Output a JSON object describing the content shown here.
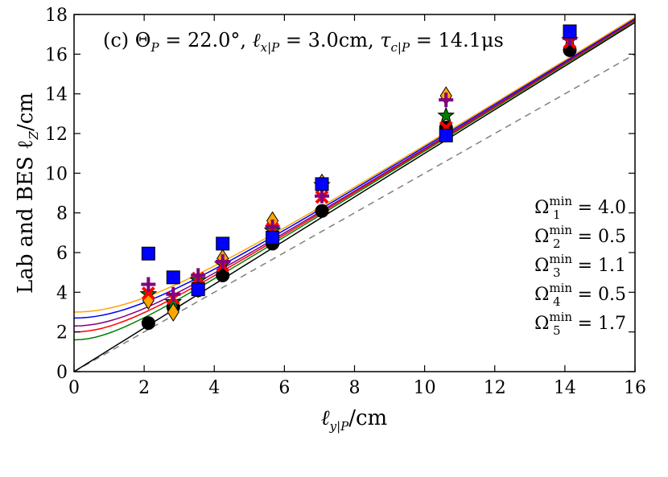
{
  "chart_data": {
    "type": "scatter",
    "title": "",
    "annotation": "(c) Θ_P = 22.0°, ℓ_x|P = 3.0cm, τ_c|P = 14.1μs",
    "annotation_parts": {
      "prefix": "(c) ",
      "theta": "Θ",
      "theta_sub": "P",
      "theta_val": " = 22.0°, ",
      "lx": "ℓ",
      "lx_sub": "x|P",
      "lx_val": " = 3.0cm, ",
      "tau": "τ",
      "tau_sub": "c|P",
      "tau_val": " = 14.1μs"
    },
    "xlabel": "ℓ_y|P/cm",
    "xlabel_parts": {
      "main": "ℓ",
      "sub": "y|P",
      "rest": "/cm"
    },
    "ylabel": "Lab and BES ℓ_Z/cm",
    "ylabel_parts": {
      "main": "Lab and BES ℓ",
      "sub": "Z",
      "rest": "/cm"
    },
    "xlim": [
      0,
      16
    ],
    "ylim": [
      0,
      18
    ],
    "xticks": [
      "0",
      "2",
      "4",
      "6",
      "8",
      "10",
      "12",
      "14",
      "16"
    ],
    "yticks": [
      "0",
      "2",
      "4",
      "6",
      "8",
      "10",
      "12",
      "14",
      "16",
      "18"
    ],
    "grid": false,
    "legend_placement": "right",
    "omega_labels": [
      {
        "sym": "Ω",
        "sub": "1",
        "sup": "min",
        "val": " = 4.0"
      },
      {
        "sym": "Ω",
        "sub": "2",
        "sup": "min",
        "val": " = 0.5"
      },
      {
        "sym": "Ω",
        "sub": "3",
        "sup": "min",
        "val": " = 1.1"
      },
      {
        "sym": "Ω",
        "sub": "4",
        "sup": "min",
        "val": " = 0.5"
      },
      {
        "sym": "Ω",
        "sub": "5",
        "sup": "min",
        "val": " = 1.7"
      }
    ],
    "reference_line": {
      "color": "#808080",
      "style": "dashed",
      "x": [
        0,
        16
      ],
      "y": [
        0,
        16
      ]
    },
    "curves": [
      {
        "color": "#000000",
        "offset": 0.0
      },
      {
        "color": "#008000",
        "offset": 1.6
      },
      {
        "color": "#ff0000",
        "offset": 2.0
      },
      {
        "color": "#800080",
        "offset": 2.3
      },
      {
        "color": "#0000ff",
        "offset": 2.7
      },
      {
        "color": "#ffa500",
        "offset": 3.0
      }
    ],
    "series": [
      {
        "marker": "circle",
        "color": "#000000",
        "x": [
          2.12,
          2.83,
          3.54,
          4.24,
          5.66,
          7.07,
          10.61,
          14.14
        ],
        "y": [
          2.45,
          3.25,
          4.1,
          4.85,
          6.45,
          8.1,
          12.3,
          16.2
        ]
      },
      {
        "marker": "star",
        "color": "#008000",
        "x": [
          2.12,
          2.83,
          3.54,
          4.24,
          5.66,
          7.07,
          10.61,
          14.14
        ],
        "y": [
          3.9,
          3.5,
          4.6,
          5.4,
          7.1,
          9.4,
          12.9,
          16.7
        ]
      },
      {
        "marker": "diamond",
        "color": "#ffa500",
        "x": [
          2.12,
          2.83,
          3.54,
          4.24,
          5.66,
          7.07,
          10.61,
          14.14
        ],
        "y": [
          3.6,
          3.0,
          4.2,
          5.7,
          7.6,
          9.5,
          13.9,
          17.0
        ]
      },
      {
        "marker": "x",
        "color": "#ff0000",
        "x": [
          2.12,
          2.83,
          3.54,
          4.24,
          5.66,
          7.07,
          10.61,
          14.14
        ],
        "y": [
          3.95,
          3.7,
          4.7,
          5.35,
          7.2,
          8.8,
          12.3,
          16.6
        ]
      },
      {
        "marker": "plus",
        "color": "#800080",
        "x": [
          2.12,
          2.83,
          3.54,
          4.24,
          5.66,
          7.07,
          10.61,
          14.14
        ],
        "y": [
          4.4,
          3.9,
          4.85,
          5.55,
          7.3,
          8.85,
          13.7,
          16.8
        ]
      },
      {
        "marker": "square",
        "color": "#0000ff",
        "x": [
          2.12,
          2.83,
          3.54,
          4.24,
          5.66,
          7.07,
          10.61,
          14.14
        ],
        "y": [
          5.95,
          4.75,
          4.15,
          6.45,
          6.75,
          9.45,
          11.9,
          17.15
        ]
      }
    ]
  }
}
